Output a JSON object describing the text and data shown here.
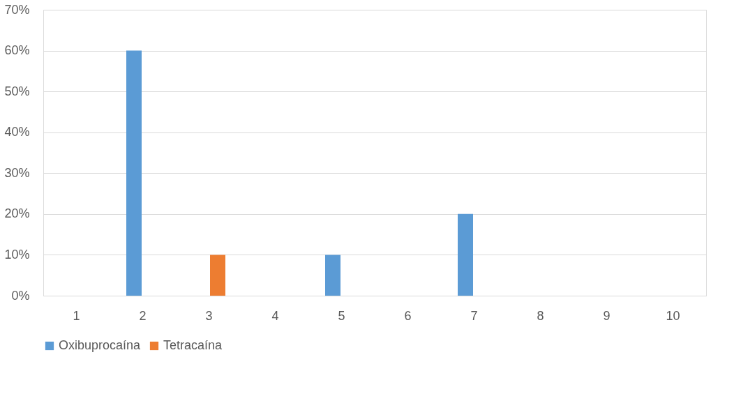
{
  "chart_data": {
    "type": "bar",
    "categories": [
      "1",
      "2",
      "3",
      "4",
      "5",
      "6",
      "7",
      "8",
      "9",
      "10"
    ],
    "series": [
      {
        "name": "Oxibuprocaína",
        "color": "#5b9bd5",
        "values": [
          0,
          60,
          0,
          0,
          10,
          0,
          20,
          0,
          0,
          0
        ]
      },
      {
        "name": "Tetracaína",
        "color": "#ed7d31",
        "values": [
          0,
          0,
          10,
          0,
          0,
          0,
          0,
          0,
          0,
          0
        ]
      }
    ],
    "ylim": [
      0,
      70
    ],
    "yticks": [
      {
        "value": 0,
        "label": "0%"
      },
      {
        "value": 10,
        "label": "10%"
      },
      {
        "value": 20,
        "label": "20%"
      },
      {
        "value": 30,
        "label": "30%"
      },
      {
        "value": 40,
        "label": "40%"
      },
      {
        "value": 50,
        "label": "50%"
      },
      {
        "value": 60,
        "label": "60%"
      },
      {
        "value": 70,
        "label": "70%"
      }
    ],
    "grid": "y",
    "legend": "bottom"
  }
}
